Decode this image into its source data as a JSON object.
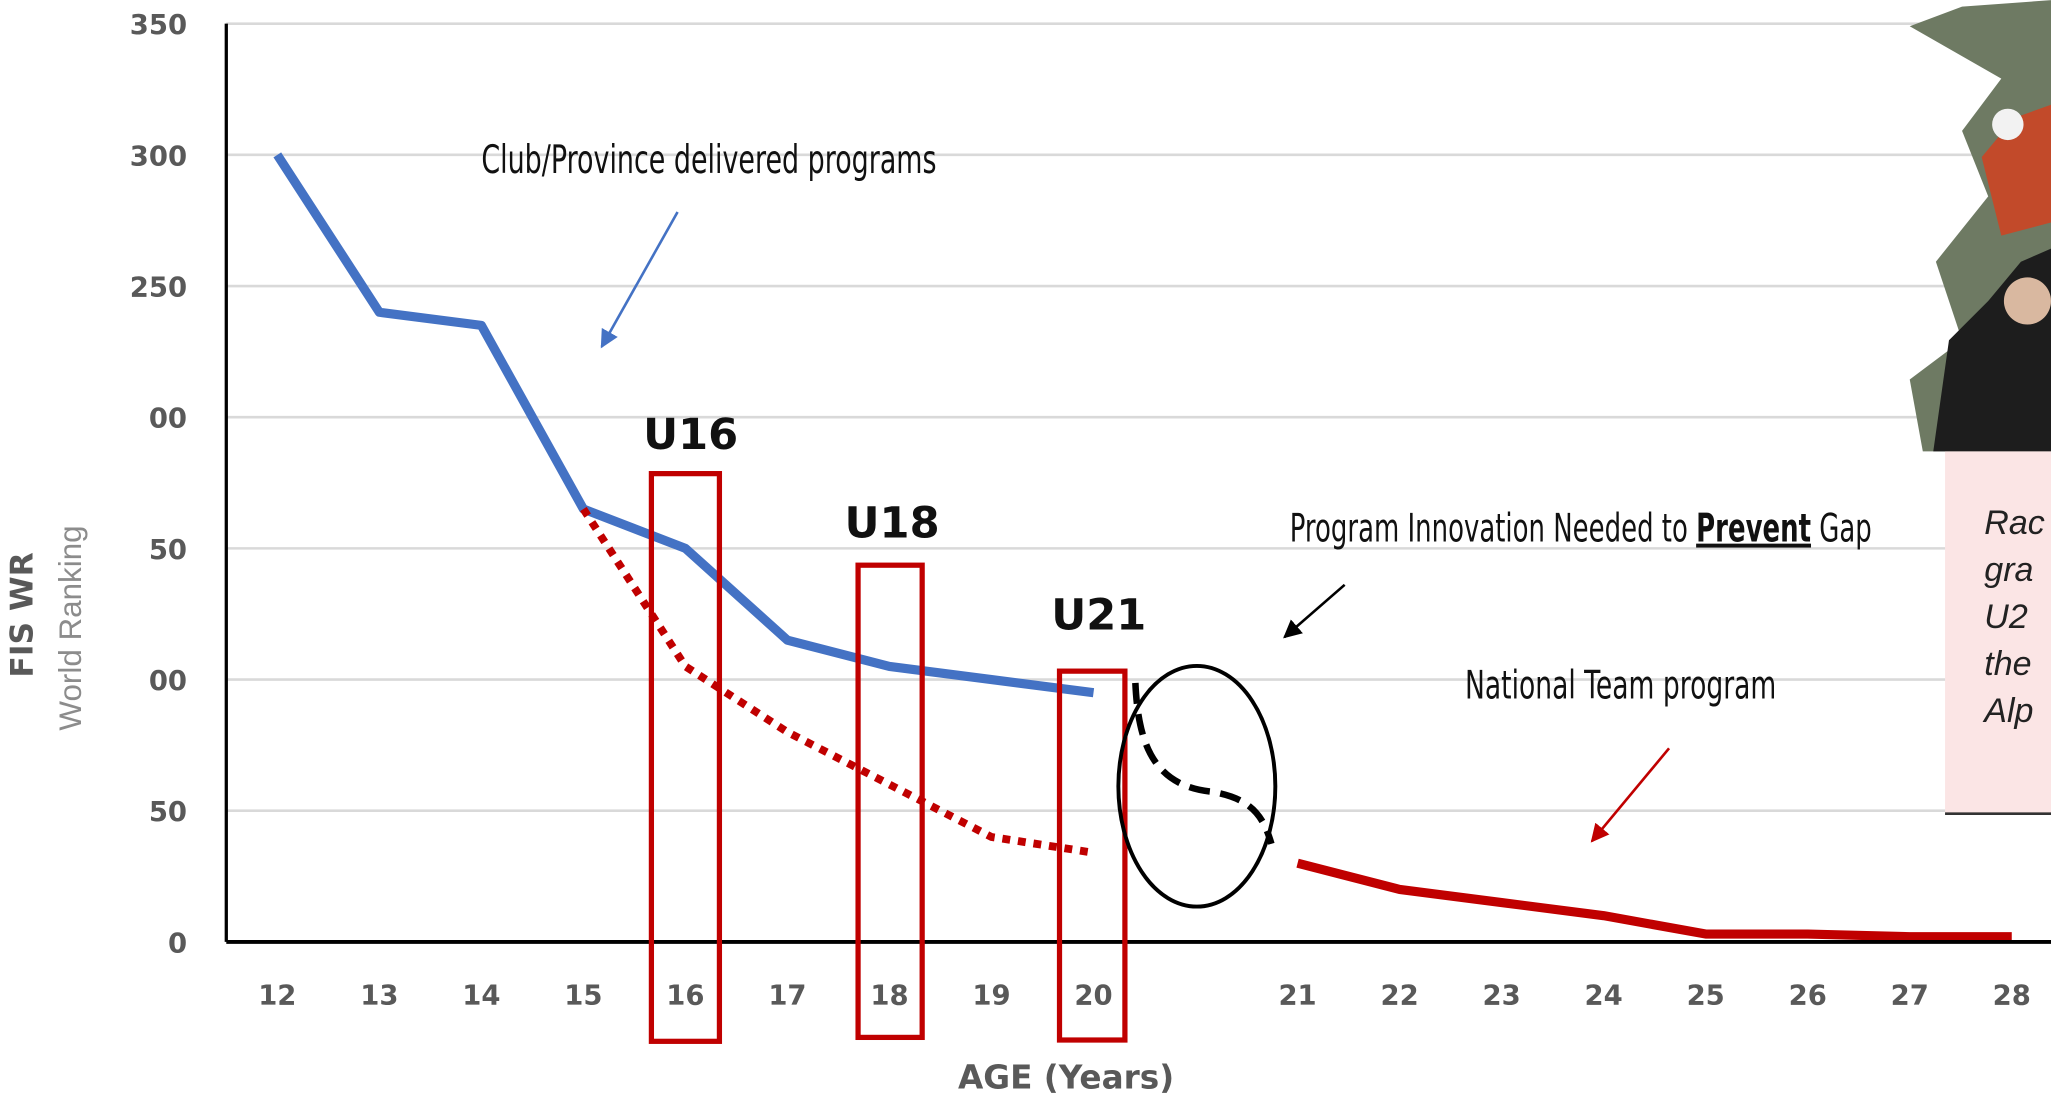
{
  "chart_data": {
    "type": "line",
    "x_label": "AGE (Years)",
    "y_label": "FIS WR",
    "y_sublabel": "World Ranking",
    "categories": [
      12,
      13,
      14,
      15,
      16,
      17,
      18,
      19,
      20,
      null,
      21,
      22,
      23,
      24,
      25,
      26,
      27,
      28
    ],
    "series": [
      {
        "name": "Club/Province delivered programs",
        "color": "#4472c4",
        "line_style": "solid",
        "values": [
          300,
          240,
          235,
          165,
          150,
          115,
          105,
          100,
          95,
          null,
          null,
          null,
          null,
          null,
          null,
          null,
          null,
          null
        ]
      },
      {
        "color": "#c00000",
        "line_style": "dotted",
        "values": [
          null,
          null,
          null,
          165,
          105,
          80,
          60,
          40,
          34,
          null,
          null,
          null,
          null,
          null,
          null,
          null,
          null,
          null
        ]
      },
      {
        "name": "National Team program",
        "color": "#c00000",
        "line_style": "solid",
        "values": [
          null,
          null,
          null,
          null,
          null,
          null,
          null,
          null,
          null,
          null,
          30,
          20,
          15,
          10,
          3,
          3,
          2,
          2
        ]
      }
    ],
    "ylim": [
      0,
      350
    ],
    "yticks": [
      0,
      {
        "value": 50,
        "label": "50"
      },
      {
        "value": 100,
        "label": "00"
      },
      {
        "value": 150,
        "label": "50"
      },
      {
        "value": 200,
        "label": "00"
      },
      250,
      300,
      350
    ],
    "grid": true,
    "age_groups": [
      "U16",
      "U18",
      "U21"
    ],
    "gap_note": {
      "before": "Program Innovation Needed to",
      "emphasis": "Prevent",
      "after": "Gap"
    },
    "side_note_lines": [
      "Rac",
      "gra",
      "U2",
      "the",
      "Alp"
    ]
  }
}
